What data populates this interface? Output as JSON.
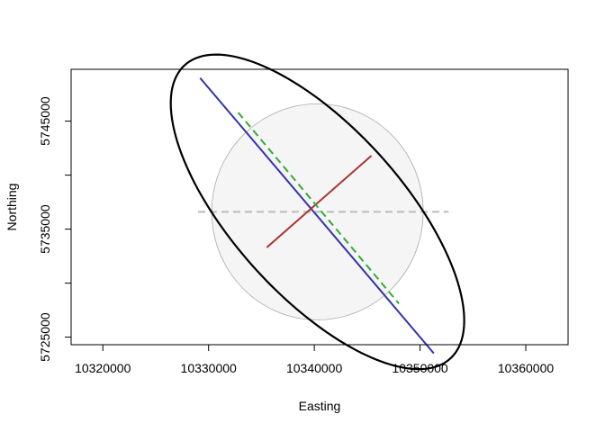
{
  "chart_data": {
    "type": "scatter",
    "title": "",
    "xlabel": "Easting",
    "ylabel": "Northing",
    "xlim": [
      10317000,
      10364000
    ],
    "ylim": [
      5724300,
      5749800
    ],
    "x_ticks": [
      10320000,
      10330000,
      10340000,
      10350000,
      10360000
    ],
    "x_tick_labels": [
      "10320000",
      "10330000",
      "10340000",
      "10350000",
      "10360000"
    ],
    "y_ticks": [
      5725000,
      5730000,
      5735000,
      5740000,
      5745000
    ],
    "y_tick_labels": [
      "5725000",
      "",
      "5735000",
      "",
      "5745000"
    ],
    "grid": false,
    "center": [
      10340300,
      5736600
    ],
    "circle": {
      "radius": 10000,
      "fill": "#f5f5f5",
      "stroke": "#aaaaaa"
    },
    "ellipse": {
      "semi_major": 18500,
      "semi_minor": 7900,
      "angle_deg": -47,
      "stroke": "#000000"
    },
    "axis_lines": [
      {
        "name": "major-axis",
        "x": [
          10329200,
          10351300
        ],
        "y": [
          5749000,
          5723500
        ],
        "color": "#3333aa",
        "dash": "solid"
      },
      {
        "name": "minor-axis",
        "x": [
          10335500,
          10345400
        ],
        "y": [
          5733300,
          5741800
        ],
        "color": "#aa3333",
        "dash": "solid"
      },
      {
        "name": "green-dashed",
        "x": [
          10332800,
          10348000
        ],
        "y": [
          5745800,
          5728100
        ],
        "color": "#33aa33",
        "dash": "dashed"
      },
      {
        "name": "grey-dashed",
        "x": [
          10329000,
          10352700
        ],
        "y": [
          5736600,
          5736600
        ],
        "color": "#bbbbbb",
        "dash": "dashed"
      }
    ],
    "colors": {
      "box": "#000000",
      "text": "#000000"
    }
  }
}
